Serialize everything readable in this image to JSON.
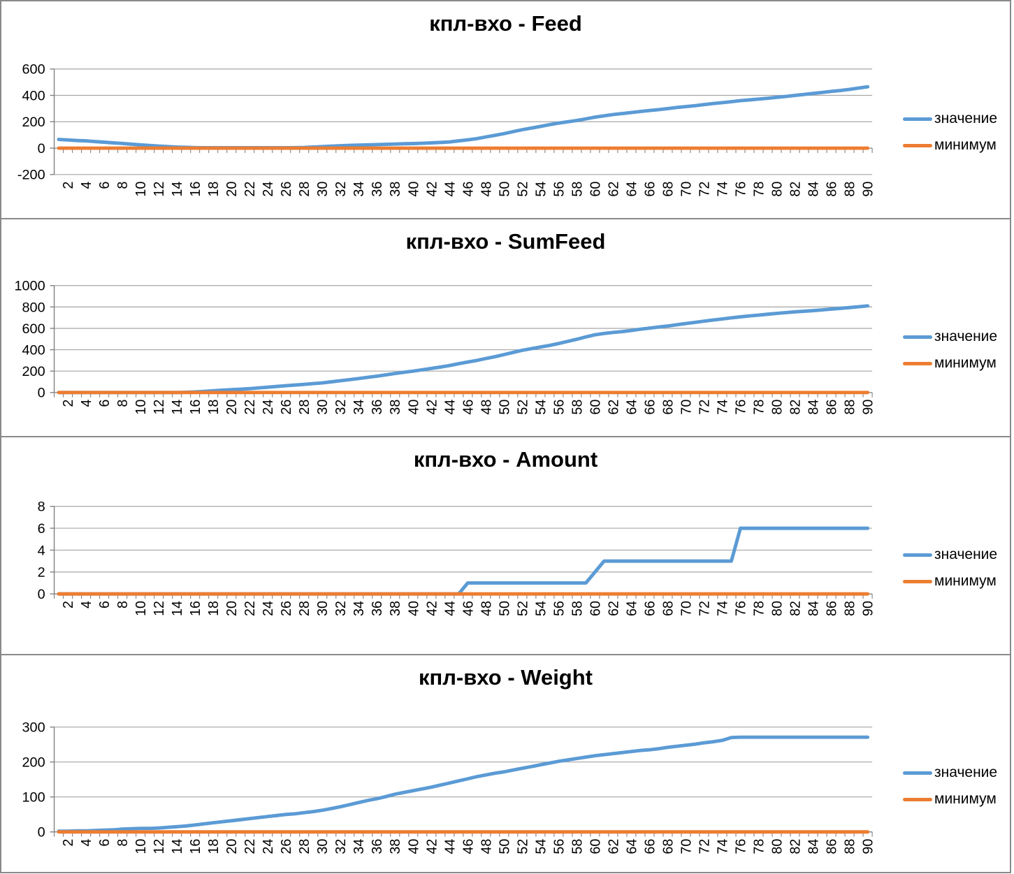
{
  "page": {
    "background": "#ffffff",
    "panel_border_color": "#898989",
    "gridline_color": "#A6A6A6",
    "axis_color": "#808080",
    "text_color": "#000000"
  },
  "x_axis": {
    "category_min": 1,
    "category_max": 90,
    "tick_label_step": 2,
    "labels": [
      "2",
      "4",
      "6",
      "8",
      "10",
      "12",
      "14",
      "16",
      "18",
      "20",
      "22",
      "24",
      "26",
      "28",
      "30",
      "32",
      "34",
      "36",
      "38",
      "40",
      "42",
      "44",
      "46",
      "48",
      "50",
      "52",
      "54",
      "56",
      "58",
      "60",
      "62",
      "64",
      "66",
      "68",
      "70",
      "72",
      "74",
      "76",
      "78",
      "80",
      "82",
      "84",
      "86",
      "88",
      "90"
    ]
  },
  "chart_data": [
    {
      "type": "line",
      "title": "кпл-вхо - Feed",
      "ylim": [
        -200,
        600
      ],
      "yticks": [
        -200,
        0,
        200,
        400,
        600
      ],
      "grid": true,
      "legend_position": "right",
      "series": [
        {
          "name": "значение",
          "color": "#5B9BD5",
          "values": [
            66,
            62,
            58,
            55,
            50,
            45,
            40,
            36,
            30,
            25,
            20,
            16,
            12,
            8,
            6,
            4,
            3,
            3,
            3,
            3,
            3,
            3,
            3,
            3,
            3,
            3,
            4,
            5,
            8,
            12,
            15,
            18,
            21,
            23,
            25,
            27,
            29,
            31,
            33,
            35,
            37,
            40,
            43,
            47,
            55,
            63,
            72,
            85,
            97,
            110,
            125,
            140,
            152,
            165,
            178,
            190,
            200,
            210,
            222,
            235,
            245,
            255,
            262,
            270,
            278,
            285,
            292,
            300,
            308,
            315,
            322,
            330,
            338,
            345,
            352,
            360,
            366,
            372,
            378,
            385,
            392,
            400,
            407,
            415,
            422,
            430,
            437,
            445,
            455,
            465
          ]
        },
        {
          "name": "минимум",
          "color": "#ED7D31",
          "constant": 0
        }
      ]
    },
    {
      "type": "line",
      "title": "кпл-вхо - SumFeed",
      "ylim": [
        0,
        1000
      ],
      "yticks": [
        0,
        200,
        400,
        600,
        800,
        1000
      ],
      "grid": true,
      "legend_position": "right",
      "series": [
        {
          "name": "значение",
          "color": "#5B9BD5",
          "values": [
            0,
            0,
            0,
            0,
            0,
            0,
            0,
            0,
            0,
            0,
            0,
            0,
            0,
            0,
            2,
            5,
            10,
            16,
            22,
            27,
            31,
            36,
            43,
            50,
            57,
            64,
            70,
            76,
            83,
            90,
            100,
            110,
            120,
            131,
            142,
            153,
            165,
            178,
            190,
            200,
            212,
            225,
            238,
            252,
            270,
            285,
            300,
            318,
            335,
            355,
            375,
            395,
            410,
            425,
            440,
            458,
            478,
            498,
            520,
            540,
            552,
            562,
            570,
            580,
            592,
            602,
            612,
            622,
            634,
            645,
            656,
            667,
            678,
            688,
            698,
            708,
            716,
            724,
            732,
            740,
            747,
            754,
            760,
            766,
            773,
            780,
            787,
            794,
            802,
            810
          ]
        },
        {
          "name": "минимум",
          "color": "#ED7D31",
          "constant": 0
        }
      ]
    },
    {
      "type": "line",
      "title": "кпл-вхо - Amount",
      "ylim": [
        0,
        8
      ],
      "yticks": [
        0,
        2,
        4,
        6,
        8
      ],
      "grid": true,
      "legend_position": "right",
      "series": [
        {
          "name": "значение",
          "color": "#5B9BD5",
          "values": [
            0,
            0,
            0,
            0,
            0,
            0,
            0,
            0,
            0,
            0,
            0,
            0,
            0,
            0,
            0,
            0,
            0,
            0,
            0,
            0,
            0,
            0,
            0,
            0,
            0,
            0,
            0,
            0,
            0,
            0,
            0,
            0,
            0,
            0,
            0,
            0,
            0,
            0,
            0,
            0,
            0,
            0,
            0,
            0,
            0,
            1,
            1,
            1,
            1,
            1,
            1,
            1,
            1,
            1,
            1,
            1,
            1,
            1,
            1,
            2,
            3,
            3,
            3,
            3,
            3,
            3,
            3,
            3,
            3,
            3,
            3,
            3,
            3,
            3,
            3,
            6,
            6,
            6,
            6,
            6,
            6,
            6,
            6,
            6,
            6,
            6,
            6,
            6,
            6,
            6
          ]
        },
        {
          "name": "минимум",
          "color": "#ED7D31",
          "constant": 0
        }
      ]
    },
    {
      "type": "line",
      "title": "кпл-вхо - Weight",
      "ylim": [
        0,
        300
      ],
      "yticks": [
        0,
        100,
        200,
        300
      ],
      "grid": true,
      "legend_position": "right",
      "series": [
        {
          "name": "значение",
          "color": "#5B9BD5",
          "values": [
            2,
            2,
            3,
            3,
            4,
            5,
            6,
            8,
            9,
            10,
            10,
            11,
            13,
            15,
            17,
            20,
            23,
            26,
            29,
            32,
            35,
            38,
            41,
            44,
            47,
            50,
            52,
            55,
            58,
            62,
            67,
            72,
            78,
            84,
            90,
            95,
            101,
            108,
            113,
            118,
            123,
            128,
            134,
            140,
            146,
            152,
            158,
            163,
            168,
            172,
            177,
            182,
            187,
            192,
            197,
            202,
            206,
            210,
            214,
            218,
            221,
            224,
            227,
            230,
            233,
            235,
            238,
            242,
            245,
            248,
            251,
            255,
            258,
            262,
            270,
            271,
            271,
            271,
            271,
            271,
            271,
            271,
            271,
            271,
            271,
            271,
            271,
            271,
            271,
            271
          ]
        },
        {
          "name": "минимум",
          "color": "#ED7D31",
          "constant": 0
        }
      ]
    }
  ]
}
